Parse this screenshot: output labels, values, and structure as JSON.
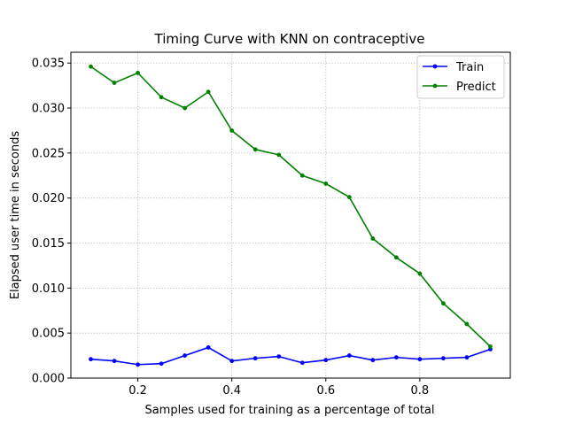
{
  "chart_data": {
    "type": "line",
    "title": "Timing Curve with KNN on contraceptive",
    "xlabel": "Samples used for training as a percentage of total",
    "ylabel": "Elapsed user time in seconds",
    "xlim": [
      0.0575,
      0.9925
    ],
    "ylim": [
      0.0,
      0.0362
    ],
    "xticks": [
      0.2,
      0.4,
      0.6,
      0.8
    ],
    "xtick_labels": [
      "0.2",
      "0.4",
      "0.6",
      "0.8"
    ],
    "yticks": [
      0.0,
      0.005,
      0.01,
      0.015,
      0.02,
      0.025,
      0.03,
      0.035
    ],
    "ytick_labels": [
      "0.000",
      "0.005",
      "0.010",
      "0.015",
      "0.020",
      "0.025",
      "0.030",
      "0.035"
    ],
    "grid": true,
    "legend_position": "top-right",
    "x": [
      0.1,
      0.15,
      0.2,
      0.25,
      0.3,
      0.35,
      0.4,
      0.45,
      0.5,
      0.55,
      0.6,
      0.65,
      0.7,
      0.75,
      0.8,
      0.85,
      0.9,
      0.95
    ],
    "series": [
      {
        "name": "Train",
        "color": "#0000ff",
        "values": [
          0.0021,
          0.0019,
          0.0015,
          0.0016,
          0.0025,
          0.0034,
          0.0019,
          0.0022,
          0.0024,
          0.0017,
          0.002,
          0.0025,
          0.002,
          0.0023,
          0.0021,
          0.0022,
          0.0023,
          0.0032
        ]
      },
      {
        "name": "Predict",
        "color": "#008000",
        "values": [
          0.0346,
          0.0328,
          0.0339,
          0.0312,
          0.03,
          0.0318,
          0.0275,
          0.0254,
          0.0248,
          0.0225,
          0.0216,
          0.0201,
          0.0155,
          0.0134,
          0.0116,
          0.0083,
          0.006,
          0.0035
        ]
      }
    ]
  }
}
